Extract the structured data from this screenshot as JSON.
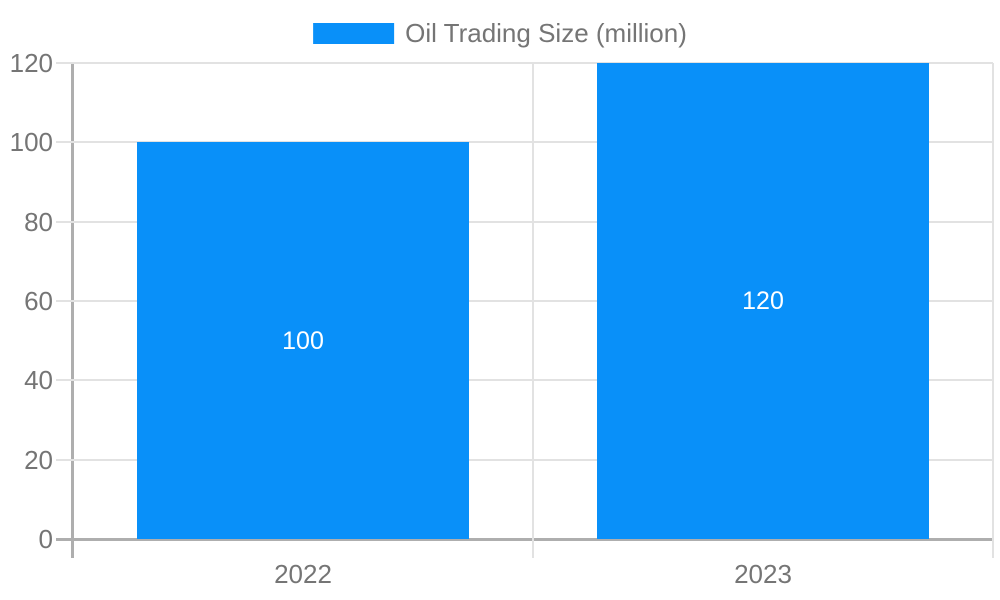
{
  "chart": {
    "legend": {
      "label": "Oil Trading Size (million)"
    }
  },
  "chart_data": {
    "type": "bar",
    "title": "",
    "categories": [
      "2022",
      "2023"
    ],
    "series": [
      {
        "name": "Oil Trading Size (million)",
        "color": "#0990f9",
        "values": [
          100,
          120
        ]
      }
    ],
    "data_labels": [
      "100",
      "120"
    ],
    "xlabel": "",
    "ylabel": "",
    "ylim": [
      0,
      120
    ],
    "yticks": [
      0,
      20,
      40,
      60,
      80,
      100,
      120
    ],
    "grid": "horizontal",
    "legend_position": "top-center",
    "colors": {
      "bar": "#0990f9",
      "axis_text": "#757575",
      "grid_line": "#e2e2e2",
      "axis_line": "#aeaeae",
      "boundary_line": "#e2e2e2",
      "value_label": "#ffffff",
      "background": "#ffffff"
    }
  }
}
